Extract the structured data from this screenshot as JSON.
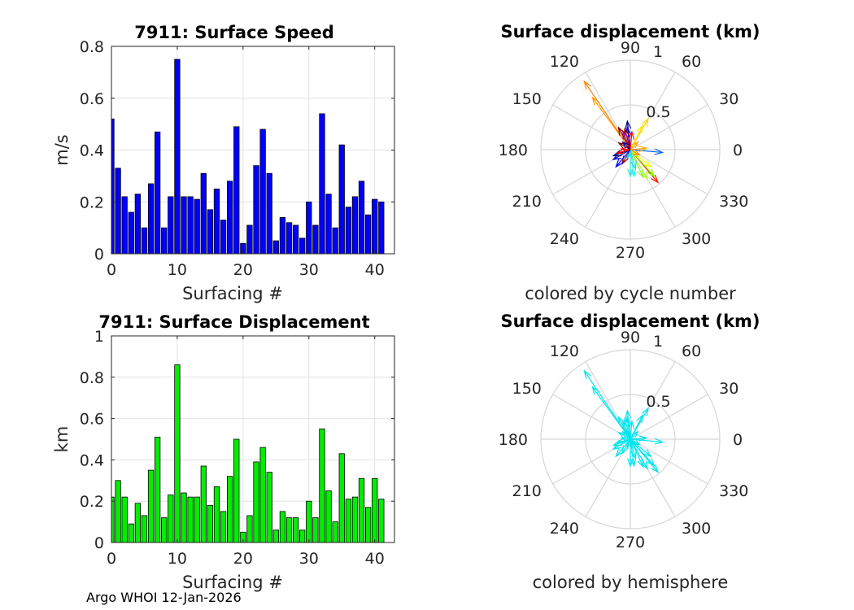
{
  "footer": "Argo WHOI 12-Jan-2026",
  "chart_data": [
    {
      "type": "bar",
      "title": "7911: Surface Speed",
      "xlabel": "Surfacing #",
      "ylabel": "m/s",
      "xlim": [
        0,
        43
      ],
      "ylim": [
        0,
        0.8
      ],
      "xticks": [
        "0",
        "10",
        "20",
        "30",
        "40"
      ],
      "yticks": [
        "0",
        "0.2",
        "0.4",
        "0.6",
        "0.8"
      ],
      "color": "#0000ff",
      "x": [
        0,
        1,
        2,
        3,
        4,
        5,
        6,
        7,
        8,
        9,
        10,
        11,
        12,
        13,
        14,
        15,
        16,
        17,
        18,
        19,
        20,
        21,
        22,
        23,
        24,
        25,
        26,
        27,
        28,
        29,
        30,
        31,
        32,
        33,
        34,
        35,
        36,
        37,
        38,
        39,
        40,
        41
      ],
      "values": [
        0.52,
        0.33,
        0.22,
        0.16,
        0.23,
        0.1,
        0.27,
        0.47,
        0.1,
        0.22,
        0.75,
        0.22,
        0.22,
        0.21,
        0.31,
        0.17,
        0.25,
        0.13,
        0.28,
        0.49,
        0.04,
        0.11,
        0.34,
        0.48,
        0.31,
        0.05,
        0.14,
        0.12,
        0.11,
        0.06,
        0.2,
        0.11,
        0.54,
        0.23,
        0.1,
        0.42,
        0.18,
        0.22,
        0.28,
        0.15,
        0.21,
        0.2
      ]
    },
    {
      "type": "polar",
      "title": "Surface displacement (km)",
      "xlabel": "colored by cycle number",
      "rlim": [
        0,
        1
      ],
      "rticks": [
        "0.5",
        "1"
      ],
      "angle_ticks": [
        "0",
        "30",
        "60",
        "90",
        "120",
        "150",
        "180",
        "210",
        "240",
        "270",
        "300",
        "330"
      ],
      "vectors": [
        {
          "angle": 124,
          "r": 0.92,
          "color": "#ff7f00"
        },
        {
          "angle": 126,
          "r": 0.72,
          "color": "#ff9900"
        },
        {
          "angle": 60,
          "r": 0.4,
          "color": "#ffd700"
        },
        {
          "angle": 63,
          "r": 0.3,
          "color": "#ffe600"
        },
        {
          "angle": 96,
          "r": 0.32,
          "color": "#00008b"
        },
        {
          "angle": 98,
          "r": 0.25,
          "color": "#0000ff"
        },
        {
          "angle": 105,
          "r": 0.24,
          "color": "#8b0000"
        },
        {
          "angle": 112,
          "r": 0.22,
          "color": "#aa00aa"
        },
        {
          "angle": 85,
          "r": 0.2,
          "color": "#ff0000"
        },
        {
          "angle": 118,
          "r": 0.28,
          "color": "#8b0000"
        },
        {
          "angle": 355,
          "r": 0.36,
          "color": "#0066ff"
        },
        {
          "angle": 5,
          "r": 0.18,
          "color": "#ffaa00"
        },
        {
          "angle": 310,
          "r": 0.48,
          "color": "#ff2000"
        },
        {
          "angle": 312,
          "r": 0.4,
          "color": "#7fff00"
        },
        {
          "angle": 300,
          "r": 0.38,
          "color": "#adff2f"
        },
        {
          "angle": 295,
          "r": 0.34,
          "color": "#99ee33"
        },
        {
          "angle": 320,
          "r": 0.3,
          "color": "#ffff00"
        },
        {
          "angle": 278,
          "r": 0.3,
          "color": "#00ffff"
        },
        {
          "angle": 270,
          "r": 0.3,
          "color": "#40e0d0"
        },
        {
          "angle": 285,
          "r": 0.22,
          "color": "#33ddcc"
        },
        {
          "angle": 210,
          "r": 0.22,
          "color": "#0000cd"
        },
        {
          "angle": 200,
          "r": 0.2,
          "color": "#00008b"
        },
        {
          "angle": 195,
          "r": 0.15,
          "color": "#ff0000"
        },
        {
          "angle": 240,
          "r": 0.18,
          "color": "#8b0000"
        },
        {
          "angle": 150,
          "r": 0.15,
          "color": "#8b0000"
        },
        {
          "angle": 175,
          "r": 0.1,
          "color": "#ff0000"
        },
        {
          "angle": 45,
          "r": 0.12,
          "color": "#ffa500"
        },
        {
          "angle": 330,
          "r": 0.12,
          "color": "#ff8800"
        },
        {
          "angle": 250,
          "r": 0.1,
          "color": "#00ccff"
        },
        {
          "angle": 135,
          "r": 0.12,
          "color": "#0000aa"
        },
        {
          "angle": 230,
          "r": 0.25,
          "color": "#0000ff"
        }
      ]
    },
    {
      "type": "bar",
      "title": "7911: Surface Displacement",
      "xlabel": "Surfacing #",
      "ylabel": "km",
      "xlim": [
        0,
        43
      ],
      "ylim": [
        0,
        1
      ],
      "xticks": [
        "0",
        "10",
        "20",
        "30",
        "40"
      ],
      "yticks": [
        "0",
        "0.2",
        "0.4",
        "0.6",
        "0.8",
        "1"
      ],
      "color": "#00ee00",
      "x": [
        0,
        1,
        2,
        3,
        4,
        5,
        6,
        7,
        8,
        9,
        10,
        11,
        12,
        13,
        14,
        15,
        16,
        17,
        18,
        19,
        20,
        21,
        22,
        23,
        24,
        25,
        26,
        27,
        28,
        29,
        30,
        31,
        32,
        33,
        34,
        35,
        36,
        37,
        38,
        39,
        40,
        41
      ],
      "values": [
        0.22,
        0.3,
        0.22,
        0.09,
        0.19,
        0.13,
        0.35,
        0.51,
        0.12,
        0.23,
        0.86,
        0.24,
        0.22,
        0.22,
        0.37,
        0.18,
        0.27,
        0.15,
        0.32,
        0.5,
        0.05,
        0.13,
        0.39,
        0.46,
        0.34,
        0.06,
        0.15,
        0.12,
        0.12,
        0.06,
        0.2,
        0.12,
        0.55,
        0.25,
        0.1,
        0.43,
        0.21,
        0.22,
        0.31,
        0.17,
        0.31,
        0.21
      ]
    },
    {
      "type": "polar",
      "title": "Surface displacement (km)",
      "xlabel": "colored by hemisphere",
      "rlim": [
        0,
        1
      ],
      "rticks": [
        "0.5",
        "1"
      ],
      "angle_ticks": [
        "0",
        "30",
        "60",
        "90",
        "120",
        "150",
        "180",
        "210",
        "240",
        "270",
        "300",
        "330"
      ],
      "vectors": [
        {
          "angle": 124,
          "r": 0.92,
          "color": "#00e5ee"
        },
        {
          "angle": 126,
          "r": 0.72,
          "color": "#00e5ee"
        },
        {
          "angle": 60,
          "r": 0.4,
          "color": "#00e5ee"
        },
        {
          "angle": 63,
          "r": 0.3,
          "color": "#00e5ee"
        },
        {
          "angle": 96,
          "r": 0.32,
          "color": "#00e5ee"
        },
        {
          "angle": 98,
          "r": 0.25,
          "color": "#00e5ee"
        },
        {
          "angle": 105,
          "r": 0.24,
          "color": "#00e5ee"
        },
        {
          "angle": 112,
          "r": 0.22,
          "color": "#00e5ee"
        },
        {
          "angle": 85,
          "r": 0.2,
          "color": "#00e5ee"
        },
        {
          "angle": 118,
          "r": 0.28,
          "color": "#00e5ee"
        },
        {
          "angle": 355,
          "r": 0.36,
          "color": "#00e5ee"
        },
        {
          "angle": 5,
          "r": 0.18,
          "color": "#00e5ee"
        },
        {
          "angle": 310,
          "r": 0.48,
          "color": "#00e5ee"
        },
        {
          "angle": 312,
          "r": 0.4,
          "color": "#00e5ee"
        },
        {
          "angle": 300,
          "r": 0.38,
          "color": "#00e5ee"
        },
        {
          "angle": 295,
          "r": 0.34,
          "color": "#00e5ee"
        },
        {
          "angle": 320,
          "r": 0.3,
          "color": "#00e5ee"
        },
        {
          "angle": 278,
          "r": 0.3,
          "color": "#00e5ee"
        },
        {
          "angle": 270,
          "r": 0.3,
          "color": "#00e5ee"
        },
        {
          "angle": 285,
          "r": 0.22,
          "color": "#00e5ee"
        },
        {
          "angle": 210,
          "r": 0.22,
          "color": "#00e5ee"
        },
        {
          "angle": 200,
          "r": 0.2,
          "color": "#00e5ee"
        },
        {
          "angle": 195,
          "r": 0.15,
          "color": "#00e5ee"
        },
        {
          "angle": 240,
          "r": 0.18,
          "color": "#00e5ee"
        },
        {
          "angle": 150,
          "r": 0.15,
          "color": "#00e5ee"
        },
        {
          "angle": 175,
          "r": 0.1,
          "color": "#00e5ee"
        },
        {
          "angle": 45,
          "r": 0.12,
          "color": "#00e5ee"
        },
        {
          "angle": 330,
          "r": 0.12,
          "color": "#00e5ee"
        },
        {
          "angle": 250,
          "r": 0.1,
          "color": "#00e5ee"
        },
        {
          "angle": 135,
          "r": 0.12,
          "color": "#00e5ee"
        },
        {
          "angle": 230,
          "r": 0.25,
          "color": "#00e5ee"
        }
      ]
    }
  ]
}
